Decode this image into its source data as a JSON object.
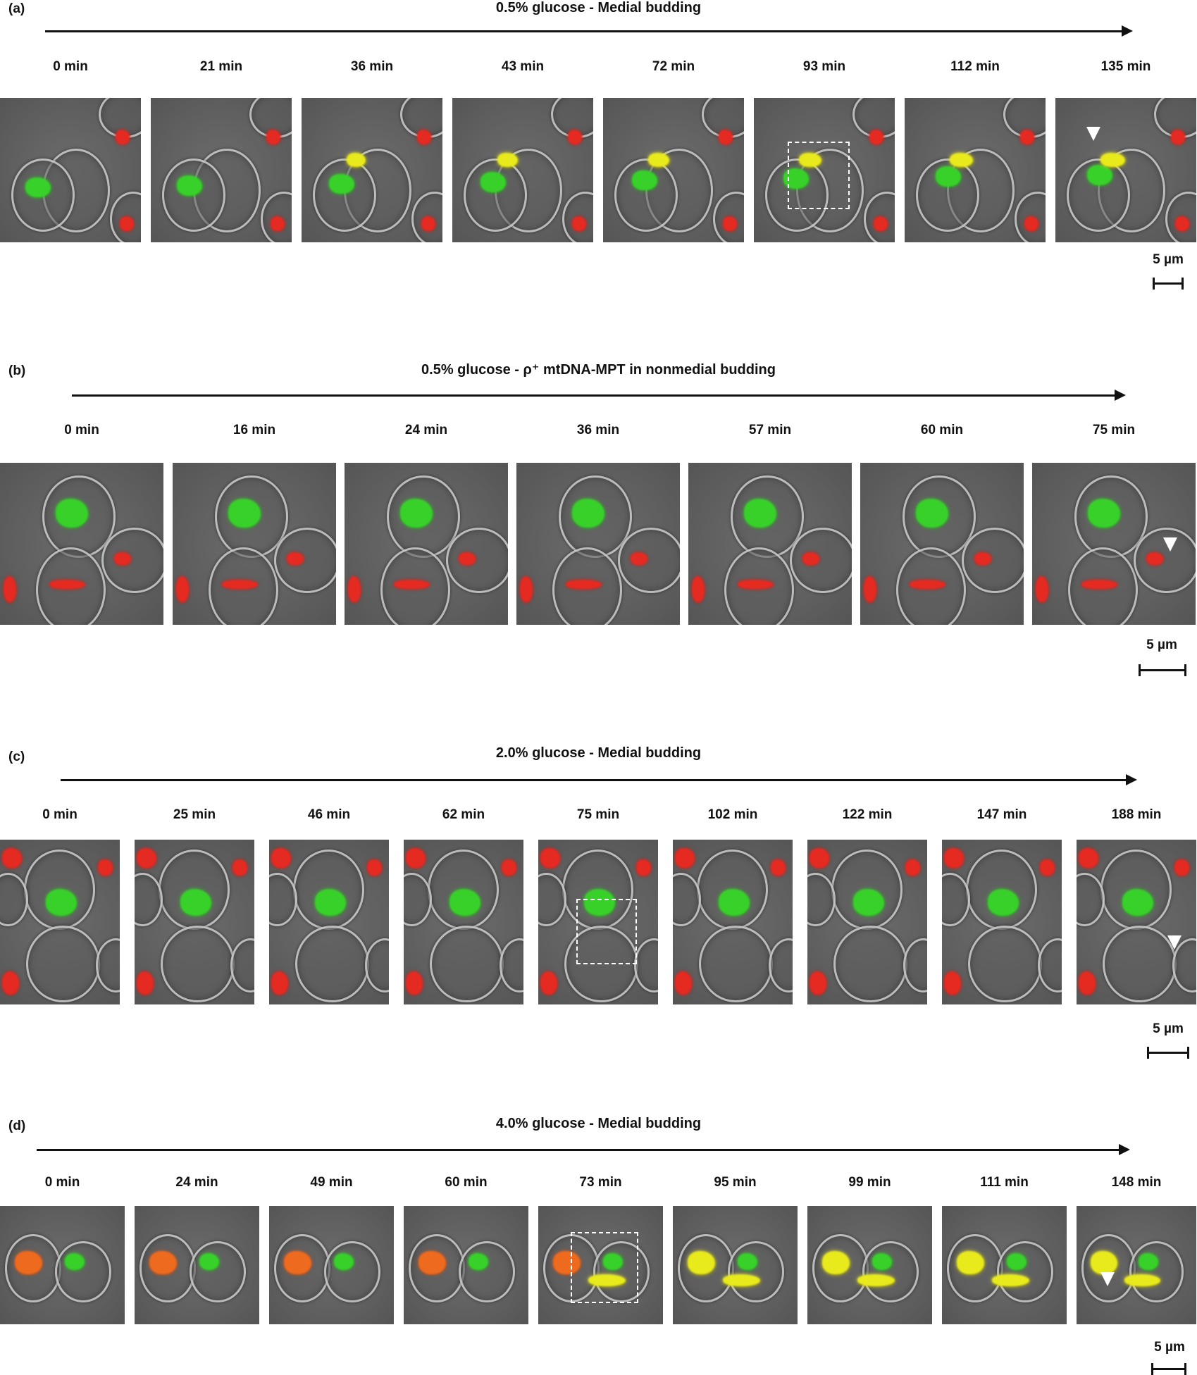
{
  "panels": [
    {
      "label": "(a)",
      "title": "0.5% glucose - Medial budding",
      "times": [
        "0 min",
        "21 min",
        "36 min",
        "43 min",
        "72 min",
        "93 min",
        "112 min",
        "135 min"
      ],
      "scale": "5 µm"
    },
    {
      "label": "(b)",
      "title": "0.5% glucose - ρ⁺ mtDNA-MPT in nonmedial budding",
      "times": [
        "0 min",
        "16 min",
        "24 min",
        "36 min",
        "57 min",
        "60 min",
        "75 min"
      ],
      "scale": "5 µm"
    },
    {
      "label": "(c)",
      "title": "2.0% glucose - Medial budding",
      "times": [
        "0 min",
        "25 min",
        "46 min",
        "62 min",
        "75 min",
        "102 min",
        "122 min",
        "147 min",
        "188 min"
      ],
      "scale": "5 µm"
    },
    {
      "label": "(d)",
      "title": "4.0% glucose - Medial budding",
      "times": [
        "0 min",
        "24 min",
        "49 min",
        "60 min",
        "73 min",
        "95 min",
        "99 min",
        "111 min",
        "148 min"
      ],
      "scale": "5 µm"
    }
  ],
  "colors": {
    "mitochondria_green": "#38d12a",
    "mitochondria_red": "#e52a22",
    "merged_yellow": "#e9ea1c",
    "background_gray": "#606060"
  }
}
